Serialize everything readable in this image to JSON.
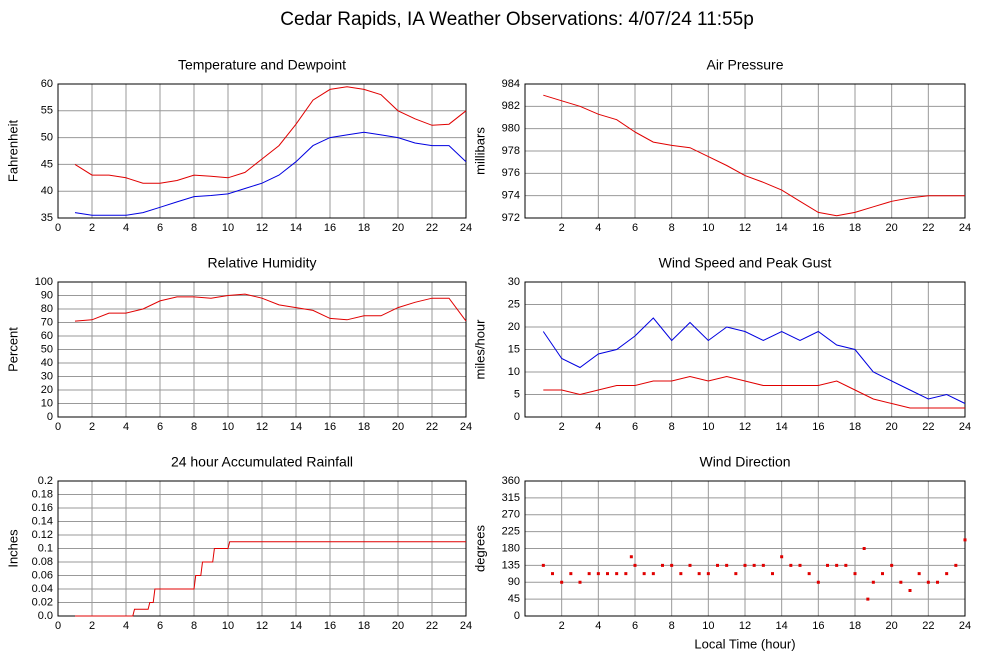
{
  "title": "Cedar Rapids, IA Weather Observations: 4/07/24 11:55p",
  "chart_data": [
    {
      "type": "line",
      "title": "Temperature and Dewpoint",
      "y_label": "Fahrenheit",
      "x": [
        1,
        2,
        3,
        4,
        5,
        6,
        7,
        8,
        9,
        10,
        11,
        12,
        13,
        14,
        15,
        16,
        17,
        18,
        19,
        20,
        21,
        22,
        23,
        24
      ],
      "series": [
        {
          "color": "#e00000",
          "values": [
            45,
            43,
            43,
            42.5,
            41.5,
            41.5,
            42,
            43,
            42.8,
            42.5,
            43.5,
            46,
            48.5,
            52.5,
            57,
            59,
            59.5,
            59,
            58,
            55,
            53.5,
            52.3,
            52.5,
            55
          ]
        },
        {
          "color": "#0000e0",
          "values": [
            36,
            35.5,
            35.5,
            35.5,
            36,
            37,
            38,
            39,
            39.2,
            39.5,
            40.5,
            41.5,
            43,
            45.5,
            48.5,
            50,
            50.5,
            51,
            50.5,
            50,
            49,
            48.5,
            48.5,
            45.5
          ]
        }
      ],
      "xlim": [
        0,
        24
      ],
      "ylim": [
        35,
        60
      ],
      "xticks": [
        0,
        2,
        4,
        6,
        8,
        10,
        12,
        14,
        16,
        18,
        20,
        22,
        24
      ],
      "yticks": [
        35,
        40,
        45,
        50,
        55,
        60
      ],
      "grid": true
    },
    {
      "type": "line",
      "title": "Air Pressure",
      "y_label": "millibars",
      "x": [
        1,
        2,
        3,
        4,
        5,
        6,
        7,
        8,
        9,
        10,
        11,
        12,
        13,
        14,
        15,
        16,
        17,
        18,
        19,
        20,
        21,
        22,
        23,
        24
      ],
      "series": [
        {
          "color": "#e00000",
          "values": [
            983,
            982.5,
            982,
            981.3,
            980.8,
            979.7,
            978.8,
            978.5,
            978.3,
            977.5,
            976.7,
            975.8,
            975.2,
            974.5,
            973.5,
            972.5,
            972.2,
            972.5,
            973,
            973.5,
            973.8,
            974,
            974,
            974
          ]
        }
      ],
      "xlim": [
        0,
        24
      ],
      "ylim": [
        972,
        984
      ],
      "xticks": [
        2,
        4,
        6,
        8,
        10,
        12,
        14,
        16,
        18,
        20,
        22,
        24
      ],
      "yticks": [
        972,
        974,
        976,
        978,
        980,
        982,
        984
      ],
      "grid": true
    },
    {
      "type": "line",
      "title": "Relative Humidity",
      "y_label": "Percent",
      "x": [
        1,
        2,
        3,
        4,
        5,
        6,
        7,
        8,
        9,
        10,
        11,
        12,
        13,
        14,
        15,
        16,
        17,
        18,
        19,
        20,
        21,
        22,
        23,
        24
      ],
      "series": [
        {
          "color": "#e00000",
          "values": [
            71,
            72,
            77,
            77,
            80,
            86,
            89,
            89,
            88,
            90,
            91,
            88,
            83,
            81,
            79,
            73,
            72,
            75,
            75,
            81,
            85,
            88,
            88,
            71
          ]
        }
      ],
      "xlim": [
        0,
        24
      ],
      "ylim": [
        0,
        100
      ],
      "xticks": [
        0,
        2,
        4,
        6,
        8,
        10,
        12,
        14,
        16,
        18,
        20,
        22,
        24
      ],
      "yticks": [
        0,
        10,
        20,
        30,
        40,
        50,
        60,
        70,
        80,
        90,
        100
      ],
      "grid": true
    },
    {
      "type": "line",
      "title": "Wind Speed and Peak Gust",
      "y_label": "miles/hour",
      "x": [
        1,
        2,
        3,
        4,
        5,
        6,
        7,
        8,
        9,
        10,
        11,
        12,
        13,
        14,
        15,
        16,
        17,
        18,
        19,
        20,
        21,
        22,
        23,
        24
      ],
      "series": [
        {
          "color": "#0000e0",
          "values": [
            19,
            13,
            11,
            14,
            15,
            18,
            22,
            17,
            21,
            17,
            20,
            19,
            17,
            19,
            17,
            19,
            16,
            15,
            10,
            8,
            6,
            4,
            5,
            3
          ]
        },
        {
          "color": "#e00000",
          "values": [
            6,
            6,
            5,
            6,
            7,
            7,
            8,
            8,
            9,
            8,
            9,
            8,
            7,
            7,
            7,
            7,
            8,
            6,
            4,
            3,
            2,
            2,
            2,
            2
          ]
        }
      ],
      "xlim": [
        0,
        24
      ],
      "ylim": [
        0,
        30
      ],
      "xticks": [
        2,
        4,
        6,
        8,
        10,
        12,
        14,
        16,
        18,
        20,
        22,
        24
      ],
      "yticks": [
        0,
        5,
        10,
        15,
        20,
        25,
        30
      ],
      "grid": true
    },
    {
      "type": "line",
      "title": "24 hour Accumulated Rainfall",
      "y_label": "Inches",
      "x": [
        1,
        4.4,
        4.5,
        5.3,
        5.4,
        5.6,
        5.7,
        8,
        8.1,
        8.4,
        8.5,
        9.1,
        9.2,
        10,
        10.1,
        24
      ],
      "series": [
        {
          "color": "#e00000",
          "values": [
            0,
            0,
            0.01,
            0.01,
            0.02,
            0.02,
            0.04,
            0.04,
            0.06,
            0.06,
            0.08,
            0.08,
            0.1,
            0.1,
            0.11,
            0.11
          ]
        }
      ],
      "xlim": [
        0,
        24
      ],
      "ylim": [
        0,
        0.2
      ],
      "xticks": [
        0,
        2,
        4,
        6,
        8,
        10,
        12,
        14,
        16,
        18,
        20,
        22,
        24
      ],
      "yticks": [
        {
          "value": 0,
          "label": "0.0"
        },
        0.02,
        0.04,
        0.06,
        0.08,
        0.1,
        0.12,
        0.14,
        0.16,
        0.18,
        0.2
      ],
      "grid": true
    },
    {
      "type": "scatter",
      "title": "Wind Direction",
      "y_label": "degrees",
      "x_label": "Local Time (hour)",
      "x": [
        1,
        1.5,
        2,
        2.5,
        3,
        3.5,
        4,
        4.5,
        5,
        5.5,
        5.8,
        6,
        6.5,
        7,
        7.5,
        8,
        8.5,
        9,
        9.5,
        10,
        10.5,
        11,
        11.5,
        12,
        12.5,
        13,
        13.5,
        14,
        14.5,
        15,
        15.5,
        16,
        16.5,
        17,
        17.5,
        18,
        18.5,
        18.7,
        19,
        19.5,
        20,
        20.5,
        21,
        21.5,
        22,
        22.5,
        23,
        23.5,
        24
      ],
      "series": [
        {
          "color": "#e00000",
          "values": [
            135,
            113,
            90,
            113,
            90,
            113,
            113,
            113,
            113,
            113,
            158,
            135,
            113,
            113,
            135,
            135,
            113,
            135,
            113,
            113,
            135,
            135,
            113,
            135,
            135,
            135,
            113,
            158,
            135,
            135,
            113,
            90,
            135,
            135,
            135,
            113,
            180,
            45,
            90,
            113,
            135,
            90,
            68,
            113,
            90,
            90,
            113,
            135,
            203
          ]
        }
      ],
      "xlim": [
        0,
        24
      ],
      "ylim": [
        0,
        360
      ],
      "xticks": [
        2,
        4,
        6,
        8,
        10,
        12,
        14,
        16,
        18,
        20,
        22,
        24
      ],
      "yticks": [
        0,
        45,
        90,
        135,
        180,
        225,
        270,
        315,
        360
      ],
      "grid": true
    }
  ]
}
